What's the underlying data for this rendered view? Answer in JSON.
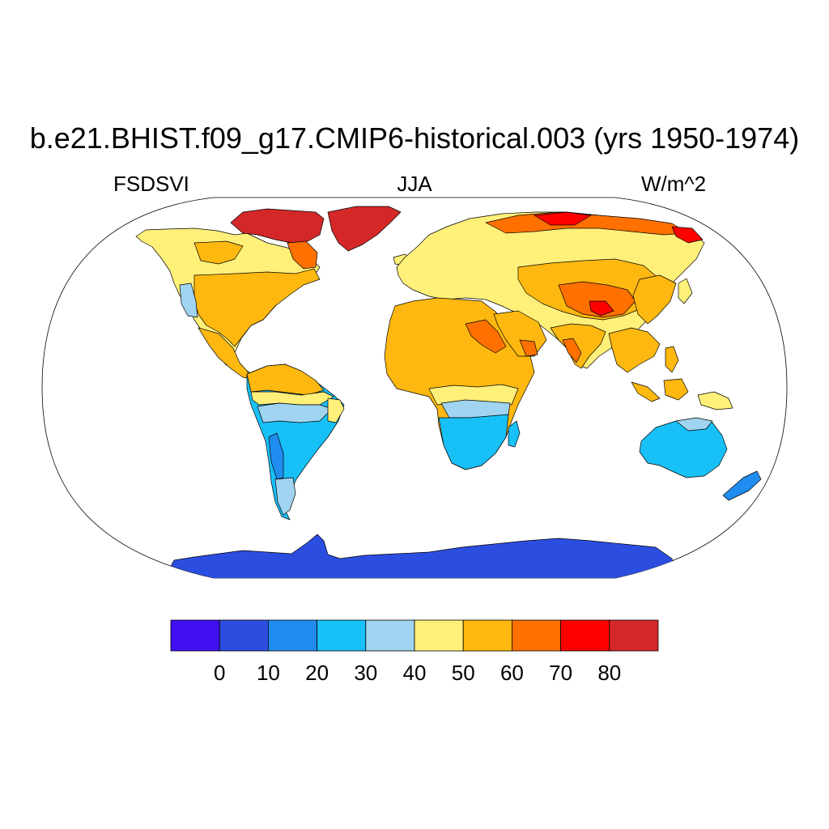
{
  "title": "b.e21.BHIST.f09_g17.CMIP6-historical.003 (yrs 1950-1974)",
  "left_label": "FSDSVI",
  "center_label": "JJA",
  "right_label": "W/m^2",
  "colorbar": {
    "colors": [
      "#4010f0",
      "#2c4ee0",
      "#208cf0",
      "#18c0f8",
      "#a0d4f0",
      "#fff07a",
      "#ffb810",
      "#ff7000",
      "#ff0000",
      "#d42828"
    ],
    "tick_labels": [
      "0",
      "10",
      "20",
      "30",
      "40",
      "50",
      "60",
      "70",
      "80"
    ]
  },
  "map": {
    "projection": "Robinson",
    "variable": "FSDSVI",
    "season": "JJA",
    "units": "W/m^2",
    "ocean_color": "#ffffff",
    "coastline_color": "#000000",
    "regions": [
      {
        "name": "Greenland",
        "level_range": "70-80+"
      },
      {
        "name": "Canadian Arctic Archipelago",
        "level_range": "80+"
      },
      {
        "name": "Northern Siberia",
        "level_range": "70-80"
      },
      {
        "name": "Canada",
        "level_range": "40-60"
      },
      {
        "name": "United States",
        "level_range": "50-60"
      },
      {
        "name": "US West Coast",
        "level_range": "30-40"
      },
      {
        "name": "Central America",
        "level_range": "50-60"
      },
      {
        "name": "Northern South America",
        "level_range": "50-60"
      },
      {
        "name": "Amazon",
        "level_range": "30-50"
      },
      {
        "name": "Southern South America",
        "level_range": "20-40"
      },
      {
        "name": "Europe",
        "level_range": "40-50"
      },
      {
        "name": "Sahara",
        "level_range": "50-70"
      },
      {
        "name": "Arabian Peninsula",
        "level_range": "50-70"
      },
      {
        "name": "Central Africa",
        "level_range": "30-50"
      },
      {
        "name": "Southern Africa",
        "level_range": "20-30"
      },
      {
        "name": "Madagascar",
        "level_range": "20-40"
      },
      {
        "name": "Russia and Central Asia",
        "level_range": "40-60"
      },
      {
        "name": "Tibetan Plateau",
        "level_range": "60-80"
      },
      {
        "name": "India",
        "level_range": "50-70"
      },
      {
        "name": "Southeast Asia",
        "level_range": "50-60"
      },
      {
        "name": "Maritime Continent",
        "level_range": "40-60"
      },
      {
        "name": "Australia",
        "level_range": "20-30"
      },
      {
        "name": "New Zealand",
        "level_range": "10-30"
      },
      {
        "name": "Antarctica",
        "level_range": "0-10"
      }
    ]
  }
}
